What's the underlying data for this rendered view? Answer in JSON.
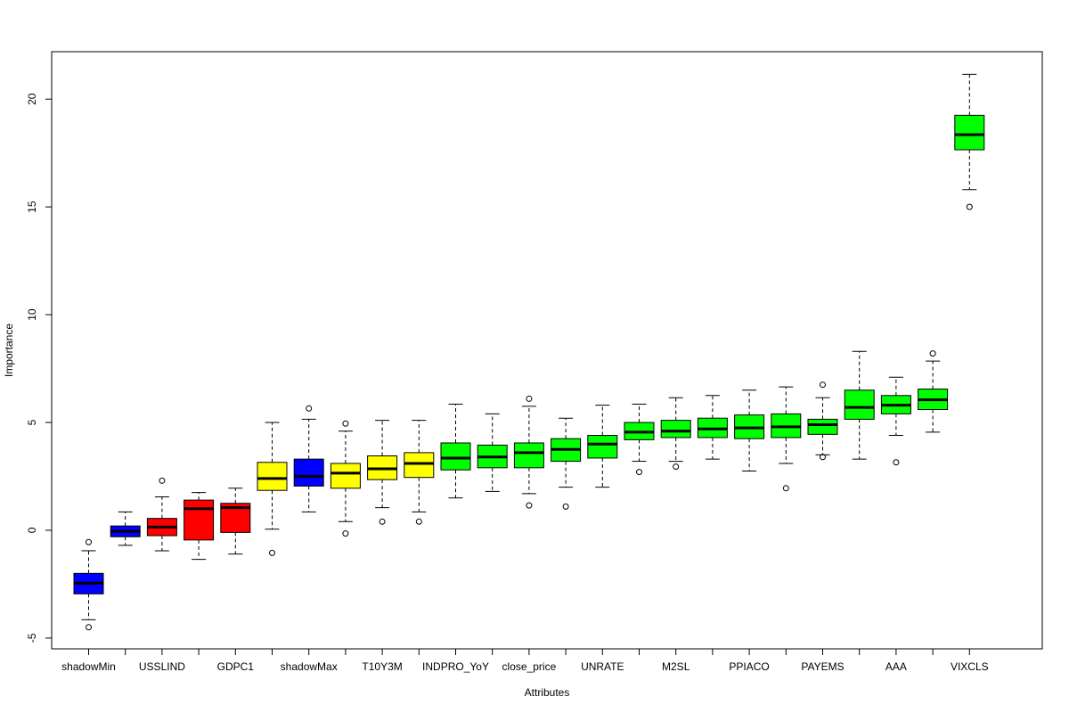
{
  "chart_data": {
    "type": "boxplot",
    "xlabel": "Attributes",
    "ylabel": "Importance",
    "ylim": [
      -5.5,
      22.2
    ],
    "yticks": [
      -5,
      0,
      5,
      10,
      15,
      20
    ],
    "colors": {
      "shadow": "#0000ff",
      "rejected": "#ff0000",
      "tentative": "#ffff00",
      "confirmed": "#00ff00"
    },
    "boxes": [
      {
        "name": "shadowMin",
        "show_label": true,
        "status": "shadow",
        "lower_whisker": -4.15,
        "q1": -2.95,
        "median": -2.45,
        "q3": -2.0,
        "upper_whisker": -0.95,
        "outliers": [
          -0.55,
          -4.5
        ]
      },
      {
        "name": "USSLIND",
        "show_label": false,
        "status": "shadow",
        "lower_whisker": -0.7,
        "q1": -0.3,
        "median": -0.05,
        "q3": 0.2,
        "upper_whisker": 0.85,
        "outliers": []
      },
      {
        "name": "USSLIND",
        "show_label": true,
        "status": "rejected",
        "lower_whisker": -0.95,
        "q1": -0.25,
        "median": 0.15,
        "q3": 0.55,
        "upper_whisker": 1.55,
        "outliers": [
          2.3
        ]
      },
      {
        "name": "GDPC1",
        "show_label": false,
        "status": "rejected",
        "lower_whisker": -1.35,
        "q1": -0.45,
        "median": 1.0,
        "q3": 1.4,
        "upper_whisker": 1.75,
        "outliers": []
      },
      {
        "name": "GDPC1",
        "show_label": true,
        "status": "rejected",
        "lower_whisker": -1.1,
        "q1": -0.1,
        "median": 1.05,
        "q3": 1.25,
        "upper_whisker": 1.95,
        "outliers": []
      },
      {
        "name": "shadowMax",
        "show_label": false,
        "status": "tentative",
        "lower_whisker": 0.05,
        "q1": 1.85,
        "median": 2.4,
        "q3": 3.15,
        "upper_whisker": 5.0,
        "outliers": [
          -1.05
        ]
      },
      {
        "name": "shadowMax",
        "show_label": true,
        "status": "shadow",
        "lower_whisker": 0.85,
        "q1": 2.05,
        "median": 2.5,
        "q3": 3.3,
        "upper_whisker": 5.15,
        "outliers": [
          5.65
        ]
      },
      {
        "name": "T10Y3M",
        "show_label": false,
        "status": "tentative",
        "lower_whisker": 0.4,
        "q1": 1.95,
        "median": 2.65,
        "q3": 3.1,
        "upper_whisker": 4.6,
        "outliers": [
          4.95,
          -0.15
        ]
      },
      {
        "name": "T10Y3M",
        "show_label": true,
        "status": "tentative",
        "lower_whisker": 1.05,
        "q1": 2.35,
        "median": 2.85,
        "q3": 3.45,
        "upper_whisker": 5.1,
        "outliers": [
          0.4
        ]
      },
      {
        "name": "INDPRO_YoY",
        "show_label": false,
        "status": "tentative",
        "lower_whisker": 0.85,
        "q1": 2.45,
        "median": 3.1,
        "q3": 3.6,
        "upper_whisker": 5.1,
        "outliers": [
          0.4
        ]
      },
      {
        "name": "INDPRO_YoY",
        "show_label": true,
        "status": "confirmed",
        "lower_whisker": 1.5,
        "q1": 2.8,
        "median": 3.35,
        "q3": 4.05,
        "upper_whisker": 5.85,
        "outliers": []
      },
      {
        "name": "close_price",
        "show_label": false,
        "status": "confirmed",
        "lower_whisker": 1.8,
        "q1": 2.9,
        "median": 3.4,
        "q3": 3.95,
        "upper_whisker": 5.4,
        "outliers": []
      },
      {
        "name": "close_price",
        "show_label": true,
        "status": "confirmed",
        "lower_whisker": 1.7,
        "q1": 2.9,
        "median": 3.6,
        "q3": 4.05,
        "upper_whisker": 5.75,
        "outliers": [
          6.1,
          1.15
        ]
      },
      {
        "name": "UNRATE",
        "show_label": false,
        "status": "confirmed",
        "lower_whisker": 2.0,
        "q1": 3.2,
        "median": 3.75,
        "q3": 4.25,
        "upper_whisker": 5.2,
        "outliers": [
          1.1
        ]
      },
      {
        "name": "UNRATE",
        "show_label": true,
        "status": "confirmed",
        "lower_whisker": 2.0,
        "q1": 3.35,
        "median": 4.0,
        "q3": 4.4,
        "upper_whisker": 5.8,
        "outliers": []
      },
      {
        "name": "M2SL",
        "show_label": false,
        "status": "confirmed",
        "lower_whisker": 3.2,
        "q1": 4.2,
        "median": 4.55,
        "q3": 5.0,
        "upper_whisker": 5.85,
        "outliers": [
          2.7
        ]
      },
      {
        "name": "M2SL",
        "show_label": true,
        "status": "confirmed",
        "lower_whisker": 3.2,
        "q1": 4.3,
        "median": 4.6,
        "q3": 5.1,
        "upper_whisker": 6.15,
        "outliers": [
          2.95
        ]
      },
      {
        "name": "PPIACO",
        "show_label": false,
        "status": "confirmed",
        "lower_whisker": 3.3,
        "q1": 4.3,
        "median": 4.7,
        "q3": 5.2,
        "upper_whisker": 6.25,
        "outliers": []
      },
      {
        "name": "PPIACO",
        "show_label": true,
        "status": "confirmed",
        "lower_whisker": 2.75,
        "q1": 4.25,
        "median": 4.75,
        "q3": 5.35,
        "upper_whisker": 6.5,
        "outliers": []
      },
      {
        "name": "PAYEMS",
        "show_label": false,
        "status": "confirmed",
        "lower_whisker": 3.1,
        "q1": 4.3,
        "median": 4.8,
        "q3": 5.4,
        "upper_whisker": 6.65,
        "outliers": [
          1.95
        ]
      },
      {
        "name": "PAYEMS",
        "show_label": true,
        "status": "confirmed",
        "lower_whisker": 3.5,
        "q1": 4.45,
        "median": 4.9,
        "q3": 5.15,
        "upper_whisker": 6.15,
        "outliers": [
          6.75,
          3.4
        ]
      },
      {
        "name": "AAA",
        "show_label": false,
        "status": "confirmed",
        "lower_whisker": 3.3,
        "q1": 5.15,
        "median": 5.7,
        "q3": 6.5,
        "upper_whisker": 8.3,
        "outliers": []
      },
      {
        "name": "AAA",
        "show_label": true,
        "status": "confirmed",
        "lower_whisker": 4.4,
        "q1": 5.4,
        "median": 5.8,
        "q3": 6.25,
        "upper_whisker": 7.1,
        "outliers": [
          3.15
        ]
      },
      {
        "name": "VIXCLS",
        "show_label": false,
        "status": "confirmed",
        "lower_whisker": 4.55,
        "q1": 5.6,
        "median": 6.05,
        "q3": 6.55,
        "upper_whisker": 7.85,
        "outliers": [
          8.2
        ]
      },
      {
        "name": "VIXCLS",
        "show_label": true,
        "status": "confirmed",
        "lower_whisker": 15.8,
        "q1": 17.65,
        "median": 18.35,
        "q3": 19.25,
        "upper_whisker": 21.15,
        "outliers": [
          15.0
        ]
      }
    ]
  }
}
